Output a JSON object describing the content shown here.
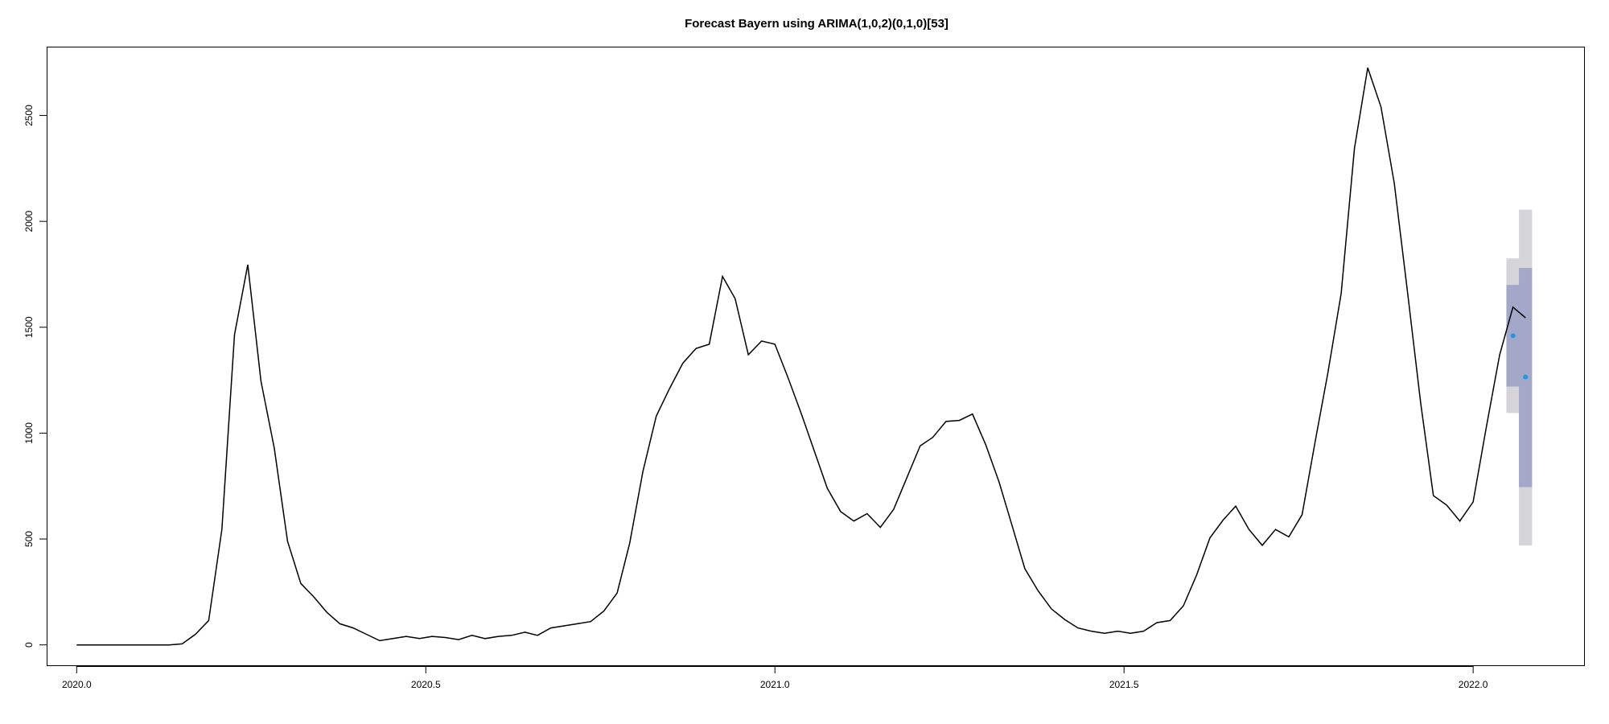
{
  "chart_data": {
    "type": "line",
    "title": "Forecast Bayern using ARIMA(1,0,2)(0,1,0)[53]",
    "xlabel": "",
    "ylabel": "",
    "xlim": [
      2019.957,
      2022.16
    ],
    "ylim": [
      -100,
      2825
    ],
    "x_ticks": [
      2020.0,
      2020.5,
      2021.0,
      2021.5,
      2022.0
    ],
    "x_tick_labels": [
      "2020.0",
      "2020.5",
      "2021.0",
      "2021.5",
      "2022.0"
    ],
    "y_ticks": [
      0,
      500,
      1000,
      1500,
      2000,
      2500
    ],
    "y_tick_labels": [
      "0",
      "500",
      "1000",
      "1500",
      "2000",
      "2500"
    ],
    "grid": false,
    "observed": {
      "x": [
        2020.0,
        2020.019,
        2020.038,
        2020.057,
        2020.075,
        2020.094,
        2020.113,
        2020.132,
        2020.151,
        2020.17,
        2020.189,
        2020.208,
        2020.226,
        2020.245,
        2020.264,
        2020.283,
        2020.302,
        2020.321,
        2020.34,
        2020.358,
        2020.377,
        2020.396,
        2020.415,
        2020.434,
        2020.453,
        2020.472,
        2020.491,
        2020.509,
        2020.528,
        2020.547,
        2020.566,
        2020.585,
        2020.604,
        2020.623,
        2020.642,
        2020.66,
        2020.679,
        2020.698,
        2020.717,
        2020.736,
        2020.755,
        2020.774,
        2020.792,
        2020.811,
        2020.83,
        2020.849,
        2020.868,
        2020.887,
        2020.906,
        2020.925,
        2020.943,
        2020.962,
        2020.981,
        2021.0,
        2021.019,
        2021.038,
        2021.057,
        2021.075,
        2021.094,
        2021.113,
        2021.132,
        2021.151,
        2021.17,
        2021.189,
        2021.208,
        2021.226,
        2021.245,
        2021.264,
        2021.283,
        2021.302,
        2021.321,
        2021.34,
        2021.358,
        2021.377,
        2021.396,
        2021.415,
        2021.434,
        2021.453,
        2021.472,
        2021.491,
        2021.509,
        2021.528,
        2021.547,
        2021.566,
        2021.585,
        2021.604,
        2021.623,
        2021.642,
        2021.66,
        2021.679,
        2021.698,
        2021.717,
        2021.736,
        2021.755,
        2021.774,
        2021.792,
        2021.811,
        2021.83,
        2021.849,
        2021.868,
        2021.887,
        2021.906,
        2021.925,
        2021.943,
        2021.962,
        2021.981,
        2022.0,
        2022.019,
        2022.038,
        2022.057,
        2022.075
      ],
      "y": [
        0,
        0,
        0,
        0,
        0,
        0,
        0,
        0,
        5,
        50,
        115,
        545,
        1465,
        1795,
        1245,
        930,
        490,
        290,
        225,
        155,
        100,
        80,
        50,
        20,
        30,
        40,
        30,
        40,
        35,
        25,
        45,
        30,
        40,
        45,
        60,
        45,
        80,
        90,
        100,
        110,
        160,
        245,
        480,
        820,
        1080,
        1210,
        1330,
        1400,
        1420,
        1740,
        1635,
        1370,
        1435,
        1420,
        1260,
        1090,
        910,
        740,
        630,
        585,
        620,
        555,
        640,
        790,
        940,
        980,
        1055,
        1060,
        1090,
        945,
        770,
        560,
        360,
        255,
        170,
        120,
        80,
        65,
        55,
        65,
        55,
        65,
        105,
        115,
        185,
        330,
        505,
        590,
        655,
        545,
        470,
        545,
        510,
        615,
        965,
        1285,
        1660,
        2345,
        2725,
        2540,
        2180,
        1665,
        1140,
        705,
        660,
        585,
        675,
        1030,
        1370,
        1595,
        1545
      ]
    },
    "forecast": {
      "x": [
        2022.057,
        2022.075
      ],
      "point": [
        1460,
        1265
      ],
      "lo80": [
        1220,
        745
      ],
      "hi80": [
        1700,
        1780
      ],
      "lo95": [
        1095,
        470
      ],
      "hi95": [
        1825,
        2055
      ]
    },
    "colors": {
      "line": "#000000",
      "point": "#2297e6",
      "band80": "#a3a8c9",
      "band95": "#d4d4d9"
    }
  }
}
